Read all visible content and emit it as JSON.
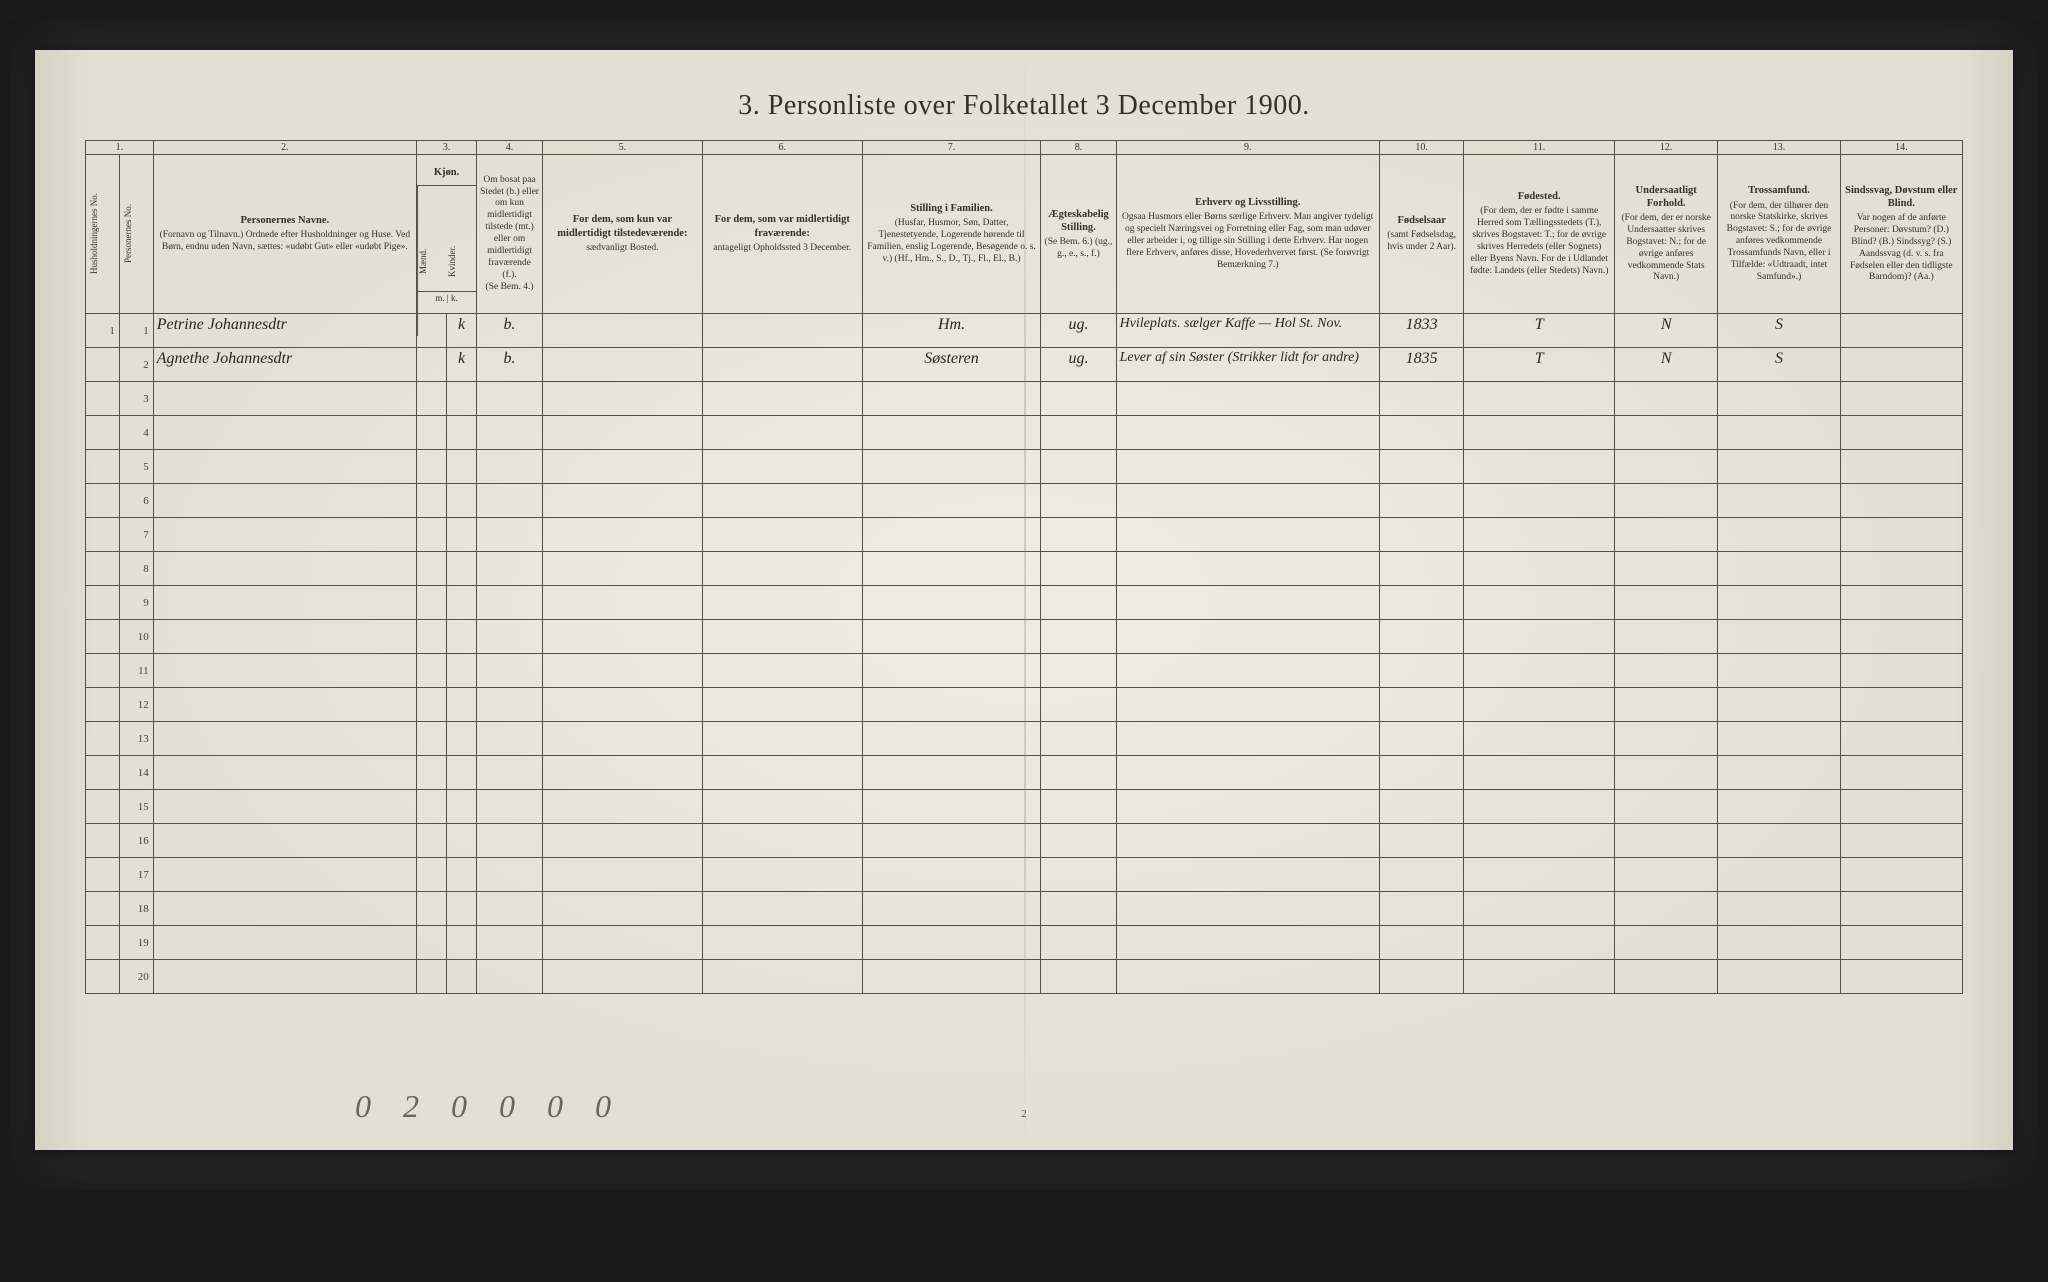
{
  "title": "3. Personliste over Folketallet 3 December 1900.",
  "column_numbers": [
    "1.",
    "",
    "2.",
    "3.",
    "",
    "4.",
    "5.",
    "6.",
    "7.",
    "8.",
    "9.",
    "10.",
    "11.",
    "12.",
    "13.",
    "14."
  ],
  "headers": {
    "c1a": "Husholdningernes No.",
    "c1b": "Personernes No.",
    "c2_main": "Personernes Navne.",
    "c2_sub": "(Fornavn og Tilnavn.)\nOrdnede efter Husholdninger og Huse.\nVed Børn, endnu uden Navn, sættes: «udøbt Gut» eller «udøbt Pige».",
    "c3_main": "Kjøn.",
    "c3_sub_a": "Mænd.",
    "c3_sub_b": "Kvinder.",
    "c3_mk": "m. | k.",
    "c4_main": "Om bosat paa Stedet (b.) eller om kun midlertidigt tilstede (mt.) eller om midlertidigt fraværende (f.).",
    "c4_sub": "(Se Bem. 4.)",
    "c5_main": "For dem, som kun var midlertidigt tilstedeværende:",
    "c5_sub": "sædvanligt Bosted.",
    "c6_main": "For dem, som var midlertidigt fraværende:",
    "c6_sub": "antageligt Opholdssted 3 December.",
    "c7_main": "Stilling i Familien.",
    "c7_sub": "(Husfar, Husmor, Søn, Datter, Tjenestetyende, Logerende hørende til Familien, enslig Logerende, Besøgende o. s. v.)\n(Hf., Hm., S., D., Tj., Fl., El., B.)",
    "c8_main": "Ægteskabelig Stilling.",
    "c8_sub": "(Se Bem. 6.)\n(ug., g., e., s., f.)",
    "c9_main": "Erhverv og Livsstilling.",
    "c9_sub": "Ogsaa Husmors eller Børns særlige Erhverv. Man angiver tydeligt og specielt Næringsvei og Forretning eller Fag, som man udøver eller arbeider i, og tillige sin Stilling i dette Erhverv. Har nogen flere Erhverv, anføres disse, Hovederhvervet først.\n(Se forøvrigt Bemærkning 7.)",
    "c10_main": "Fødselsaar",
    "c10_sub": "(samt Fødselsdag, hvis under 2 Aar).",
    "c11_main": "Fødested.",
    "c11_sub": "(For dem, der er fødte i samme Herred som Tællingsstedets (T.), skrives Bogstavet: T.; for de øvrige skrives Herredets (eller Sognets) eller Byens Navn. For de i Udlandet fødte: Landets (eller Stedets) Navn.)",
    "c12_main": "Undersaatligt Forhold.",
    "c12_sub": "(For dem, der er norske Undersaatter skrives Bogstavet: N.; for de øvrige anføres vedkommende Stats Navn.)",
    "c13_main": "Trossamfund.",
    "c13_sub": "(For dem, der tilhører den norske Statskirke, skrives Bogstavet: S.; for de øvrige anføres vedkommende Trossamfunds Navn, eller i Tilfælde: «Udtraadt, intet Samfund».)",
    "c14_main": "Sindssvag, Døvstum eller Blind.",
    "c14_sub": "Var nogen af de anførte Personer:\nDøvstum? (D.)\nBlind? (B.)\nSindssyg? (S.)\nAandssvag (d. v. s. fra Fødselen eller den tidligste Barndom)? (Aa.)"
  },
  "rows": [
    {
      "hh": "1",
      "pn": "1",
      "name": "Petrine Johannesdtr",
      "sex_k": "k",
      "bf": "b.",
      "c5": "",
      "c6": "",
      "c7": "Hm.",
      "c8": "ug.",
      "c9": "Hvileplats. sælger Kaffe — Hol St. Nov.",
      "c10": "1833",
      "c11": "T",
      "c12": "N",
      "c13": "S",
      "c14": ""
    },
    {
      "hh": "",
      "pn": "2",
      "name": "Agnethe Johannesdtr",
      "sex_k": "k",
      "bf": "b.",
      "c5": "",
      "c6": "",
      "c7": "Søsteren",
      "c8": "ug.",
      "c9": "Lever af sin Søster (Strikker lidt for andre)",
      "c10": "1835",
      "c11": "T",
      "c12": "N",
      "c13": "S",
      "c14": ""
    }
  ],
  "blank_row_count": 18,
  "footer_annotation": "0 2 0 0   0 0",
  "printed_page_num": "2",
  "colors": {
    "paper": "#e8e4d8",
    "ink": "#353028",
    "rule": "#555048",
    "handwriting": "#2a2520",
    "frame": "#1a1a1a"
  }
}
